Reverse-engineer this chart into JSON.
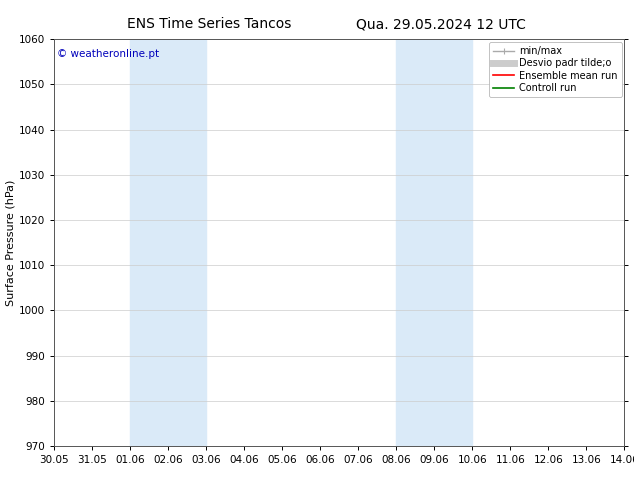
{
  "title": "ENS Time Series Tancos",
  "title2": "Qua. 29.05.2024 12 UTC",
  "ylabel": "Surface Pressure (hPa)",
  "ylim": [
    970,
    1060
  ],
  "yticks": [
    970,
    980,
    990,
    1000,
    1010,
    1020,
    1030,
    1040,
    1050,
    1060
  ],
  "xlim_start": 0,
  "xlim_end": 15,
  "xtick_labels": [
    "30.05",
    "31.05",
    "01.06",
    "02.06",
    "03.06",
    "04.06",
    "05.06",
    "06.06",
    "07.06",
    "08.06",
    "09.06",
    "10.06",
    "11.06",
    "12.06",
    "13.06",
    "14.06"
  ],
  "xtick_positions": [
    0,
    1,
    2,
    3,
    4,
    5,
    6,
    7,
    8,
    9,
    10,
    11,
    12,
    13,
    14,
    15
  ],
  "shaded_bands": [
    {
      "xmin": 2,
      "xmax": 4
    },
    {
      "xmin": 9,
      "xmax": 11
    }
  ],
  "band_color": "#daeaf8",
  "watermark": "© weatheronline.pt",
  "watermark_color": "#0000bb",
  "legend_entries": [
    {
      "label": "min/max",
      "color": "#aaaaaa",
      "lw": 1.0
    },
    {
      "label": "Desvio padr tilde;o",
      "color": "#cccccc",
      "lw": 5
    },
    {
      "label": "Ensemble mean run",
      "color": "#ff0000",
      "lw": 1.2
    },
    {
      "label": "Controll run",
      "color": "#008000",
      "lw": 1.2
    }
  ],
  "bg_color": "#ffffff",
  "grid_color": "#cccccc",
  "title_fontsize": 10,
  "axis_label_fontsize": 8,
  "tick_fontsize": 7.5,
  "legend_fontsize": 7,
  "watermark_fontsize": 7.5
}
